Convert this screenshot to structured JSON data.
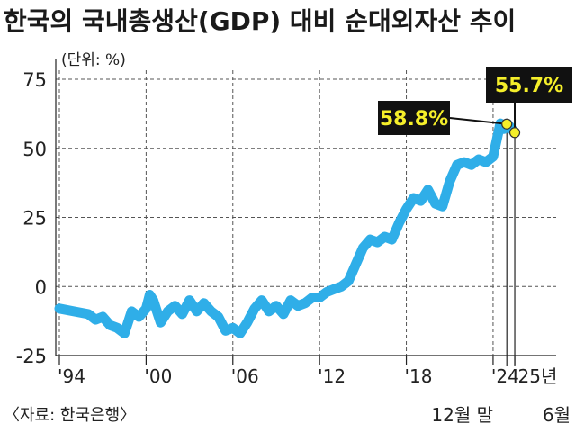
{
  "chart_data": {
    "type": "line",
    "title": "한국의 국내총생산(GDP) 대비 순대외자산 추이",
    "unit_label": "(단위: %)",
    "ylim": [
      -25,
      75
    ],
    "y_ticks": [
      "75",
      "50",
      "25",
      "0",
      "-25"
    ],
    "x_ticks": [
      "'94",
      "'00",
      "'06",
      "'12",
      "'18",
      "'24",
      "'25년"
    ],
    "x_tick_notes": [
      "12월 말",
      "6월"
    ],
    "source": "〈자료: 한국은행〉",
    "grid": true,
    "series_color": "#2faee8",
    "annotations": [
      {
        "label": "58.8%",
        "x": "2024-12",
        "y": 58.8
      },
      {
        "label": "55.7%",
        "x": "2025-06",
        "y": 55.7
      }
    ],
    "series": [
      {
        "x": [
          1994.0,
          1995.0,
          1996.0,
          1996.5,
          1997.0,
          1997.5,
          1998.0,
          1998.5,
          1999.0,
          1999.5,
          2000.0,
          2000.25,
          2000.5,
          2000.75,
          2001.0,
          2001.5,
          2002.0,
          2002.5,
          2003.0,
          2003.5,
          2004.0,
          2004.5,
          2005.0,
          2005.5,
          2006.0,
          2006.5,
          2007.0,
          2007.5,
          2008.0,
          2008.5,
          2009.0,
          2009.5,
          2010.0,
          2010.5,
          2011.0,
          2011.5,
          2012.0,
          2012.5,
          2013.0,
          2013.5,
          2014.0,
          2014.5,
          2015.0,
          2015.5,
          2016.0,
          2016.5,
          2017.0,
          2017.5,
          2018.0,
          2018.5,
          2019.0,
          2019.5,
          2020.0,
          2020.5,
          2021.0,
          2021.5,
          2022.0,
          2022.5,
          2023.0,
          2023.5,
          2024.0,
          2024.5,
          2024.75,
          2025.0,
          2025.5
        ],
        "values": [
          -8,
          -9,
          -10,
          -12,
          -11,
          -14,
          -15,
          -17,
          -9,
          -11,
          -8,
          -3,
          -5,
          -9,
          -13,
          -9,
          -7,
          -10,
          -5,
          -9,
          -6,
          -9,
          -11,
          -16,
          -15,
          -17,
          -13,
          -8,
          -5,
          -9,
          -7,
          -10,
          -5,
          -7,
          -6,
          -4,
          -4,
          -2,
          -1,
          0,
          2,
          8,
          14,
          17,
          16,
          18,
          17,
          23,
          28,
          32,
          31,
          35,
          30,
          29,
          38,
          44,
          45,
          44,
          46,
          45,
          47,
          59,
          57,
          58.8,
          55.7
        ]
      }
    ]
  }
}
